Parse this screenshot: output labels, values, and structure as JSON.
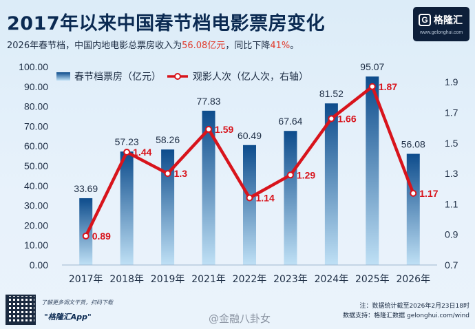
{
  "header": {
    "title": "2017年以来中国春节档电影票房变化",
    "subtitle_pre": "2026年春节档，中国内地电影总票房收入为",
    "subtitle_value": "56.08亿元",
    "subtitle_mid": "，同比下降",
    "subtitle_pct": "41%",
    "subtitle_post": "。"
  },
  "logo": {
    "name": "格隆汇",
    "mark": "G",
    "url": "www.gelonghui.com"
  },
  "colors": {
    "bar_top": "#0d4c8c",
    "bar_bottom": "#bfe0f5",
    "line": "#d8141c",
    "text_dark": "#0b2a52"
  },
  "chart_data": {
    "type": "bar",
    "categories": [
      "2017年",
      "2018年",
      "2019年",
      "2021年",
      "2022年",
      "2023年",
      "2024年",
      "2025年",
      "2026年"
    ],
    "series": [
      {
        "name": "春节档票房（亿元）",
        "type": "bar",
        "axis": "left",
        "values": [
          33.69,
          57.23,
          58.26,
          77.83,
          60.49,
          67.64,
          81.52,
          95.07,
          56.08
        ],
        "labels": [
          "33.69",
          "57.23",
          "58.26",
          "77.83",
          "60.49",
          "67.64",
          "81.52",
          "95.07",
          "56.08"
        ]
      },
      {
        "name": "观影人次（亿人次，右轴）",
        "type": "line",
        "axis": "right",
        "values": [
          0.89,
          1.44,
          1.3,
          1.59,
          1.14,
          1.29,
          1.66,
          1.87,
          1.17
        ],
        "labels": [
          "0.89",
          "1.44",
          "1.3",
          "1.59",
          "1.14",
          "1.29",
          "1.66",
          "1.87",
          "1.17"
        ]
      }
    ],
    "ylim": [
      0,
      100
    ],
    "y_ticks": [
      "0.00",
      "10.00",
      "20.00",
      "30.00",
      "40.00",
      "50.00",
      "60.00",
      "70.00",
      "80.00",
      "90.00",
      "100.00"
    ],
    "y2lim": [
      0.7,
      2.0
    ],
    "y2_ticks": [
      "0.7",
      "0.9",
      "1.1",
      "1.3",
      "1.5",
      "1.7",
      "1.9"
    ],
    "legend_position": "top-left",
    "grid": false
  },
  "footer": {
    "app_line1": "了解更多调文干货，扫码下载",
    "app_line2": "\"格隆汇App\"",
    "note_line1": "注：数据统计截至2026年2月23日18时",
    "note_line2": "数据支持：格隆汇数据 gelonghui.com/wind",
    "weibo": "@金融八卦女"
  }
}
